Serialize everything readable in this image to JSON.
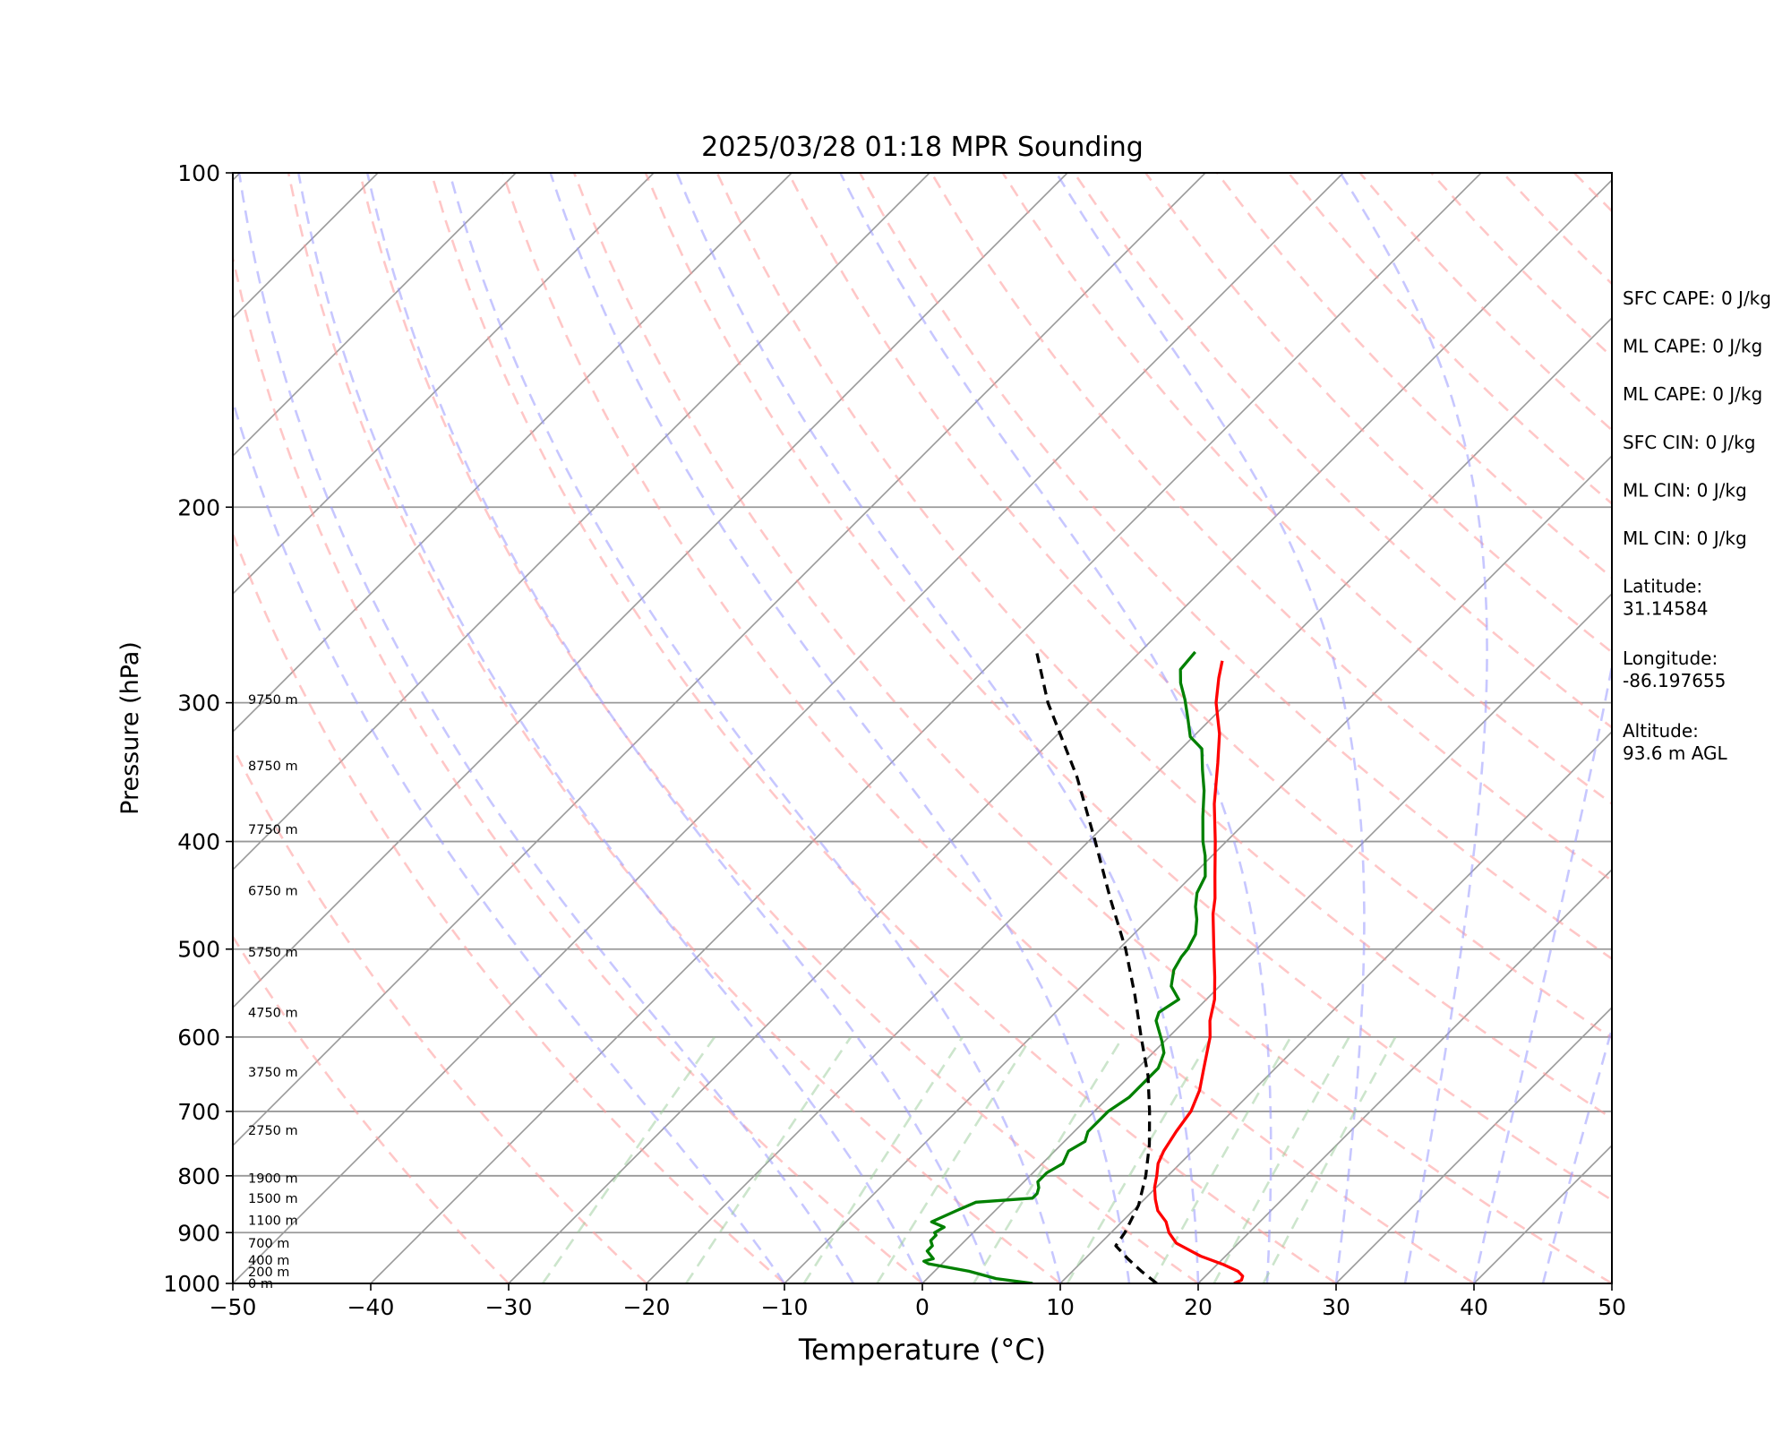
{
  "chart_data": {
    "type": "line",
    "title": "2025/03/28 01:18 MPR Sounding",
    "xlabel": "Temperature (°C)",
    "ylabel": "Pressure (hPa)",
    "xlim": [
      -50,
      50
    ],
    "ylim": [
      1000,
      100
    ],
    "y_scale": "log",
    "skew_degrees": 45,
    "grid": true,
    "x_ticks": [
      "−50",
      "−40",
      "−30",
      "−20",
      "−10",
      "0",
      "10",
      "20",
      "30",
      "40",
      "50"
    ],
    "x_tick_values": [
      -50,
      -40,
      -30,
      -20,
      -10,
      0,
      10,
      20,
      30,
      40,
      50
    ],
    "y_ticks": [
      "1000",
      "900",
      "800",
      "700",
      "600",
      "500",
      "400",
      "300",
      "200",
      "100"
    ],
    "y_tick_values": [
      1000,
      900,
      800,
      700,
      600,
      500,
      400,
      300,
      200,
      100
    ],
    "colors": {
      "temperature": "#ff0000",
      "dewpoint": "#008000",
      "parcel": "#000000",
      "dry_adiabats": "#ff9999",
      "moist_adiabats": "#9999ff",
      "mixing_ratio": "#99cc99",
      "isotherms": "#999999",
      "isobars": "#999999"
    },
    "series": [
      {
        "key": "temperature",
        "style": "solid",
        "points": [
          [
            1000,
            22.6
          ],
          [
            993,
            22.9
          ],
          [
            985,
            22.7
          ],
          [
            975,
            22.0
          ],
          [
            962,
            20.5
          ],
          [
            945,
            18.2
          ],
          [
            920,
            15.5
          ],
          [
            900,
            14.2
          ],
          [
            880,
            13.2
          ],
          [
            860,
            11.8
          ],
          [
            840,
            10.8
          ],
          [
            820,
            9.9
          ],
          [
            800,
            9.2
          ],
          [
            780,
            8.4
          ],
          [
            760,
            7.9
          ],
          [
            730,
            7.4
          ],
          [
            700,
            7.0
          ],
          [
            670,
            6.1
          ],
          [
            640,
            4.8
          ],
          [
            600,
            3.0
          ],
          [
            580,
            1.8
          ],
          [
            555,
            0.6
          ],
          [
            530,
            -1.0
          ],
          [
            500,
            -3.1
          ],
          [
            465,
            -5.7
          ],
          [
            450,
            -6.7
          ],
          [
            430,
            -8.3
          ],
          [
            400,
            -10.8
          ],
          [
            370,
            -13.6
          ],
          [
            340,
            -16.3
          ],
          [
            320,
            -18.3
          ],
          [
            300,
            -20.8
          ],
          [
            285,
            -22.4
          ],
          [
            275,
            -23.4
          ]
        ]
      },
      {
        "key": "dewpoint",
        "style": "solid",
        "points": [
          [
            1000,
            8.0
          ],
          [
            990,
            5.0
          ],
          [
            975,
            2.5
          ],
          [
            960,
            -1.0
          ],
          [
            955,
            -1.5
          ],
          [
            950,
            -1.0
          ],
          [
            935,
            -2.0
          ],
          [
            925,
            -2.0
          ],
          [
            915,
            -2.5
          ],
          [
            905,
            -2.5
          ],
          [
            900,
            -2.8
          ],
          [
            890,
            -2.5
          ],
          [
            880,
            -3.8
          ],
          [
            870,
            -3.3
          ],
          [
            860,
            -2.8
          ],
          [
            845,
            -2.0
          ],
          [
            838,
            1.8
          ],
          [
            830,
            1.8
          ],
          [
            820,
            1.5
          ],
          [
            810,
            1.0
          ],
          [
            795,
            1.0
          ],
          [
            780,
            1.5
          ],
          [
            760,
            1.0
          ],
          [
            745,
            1.5
          ],
          [
            730,
            1.0
          ],
          [
            700,
            1.0
          ],
          [
            680,
            1.5
          ],
          [
            660,
            1.5
          ],
          [
            640,
            1.5
          ],
          [
            620,
            0.8
          ],
          [
            605,
            -0.2
          ],
          [
            580,
            -2.1
          ],
          [
            570,
            -2.5
          ],
          [
            555,
            -2.0
          ],
          [
            540,
            -3.5
          ],
          [
            522,
            -4.5
          ],
          [
            508,
            -4.9
          ],
          [
            500,
            -5.0
          ],
          [
            485,
            -5.5
          ],
          [
            470,
            -6.5
          ],
          [
            458,
            -7.5
          ],
          [
            445,
            -8.4
          ],
          [
            430,
            -9.0
          ],
          [
            412,
            -10.5
          ],
          [
            400,
            -11.7
          ],
          [
            380,
            -13.5
          ],
          [
            360,
            -15.3
          ],
          [
            345,
            -16.9
          ],
          [
            330,
            -18.5
          ],
          [
            322,
            -20.2
          ],
          [
            310,
            -21.7
          ],
          [
            298,
            -23.3
          ],
          [
            288,
            -24.8
          ],
          [
            280,
            -25.8
          ],
          [
            270,
            -26.0
          ]
        ]
      },
      {
        "key": "parcel",
        "style": "dashed",
        "points": [
          [
            1000,
            17.0
          ],
          [
            975,
            15.0
          ],
          [
            950,
            13.1
          ],
          [
            925,
            11.3
          ],
          [
            900,
            11.0
          ],
          [
            850,
            10.0
          ],
          [
            800,
            8.4
          ],
          [
            750,
            6.4
          ],
          [
            700,
            4.0
          ],
          [
            650,
            1.3
          ],
          [
            600,
            -2.0
          ],
          [
            550,
            -5.5
          ],
          [
            500,
            -9.5
          ],
          [
            450,
            -14.3
          ],
          [
            400,
            -19.5
          ],
          [
            350,
            -25.5
          ],
          [
            300,
            -33.0
          ],
          [
            270,
            -37.5
          ]
        ]
      }
    ],
    "height_labels": [
      {
        "p": 1000,
        "text": "0 m"
      },
      {
        "p": 976,
        "text": "200 m"
      },
      {
        "p": 953,
        "text": "400 m"
      },
      {
        "p": 920,
        "text": "700 m"
      },
      {
        "p": 877,
        "text": "1100 m"
      },
      {
        "p": 838,
        "text": "1500 m"
      },
      {
        "p": 804,
        "text": "1900 m"
      },
      {
        "p": 728,
        "text": "2750 m"
      },
      {
        "p": 645,
        "text": "3750 m"
      },
      {
        "p": 570,
        "text": "4750 m"
      },
      {
        "p": 503,
        "text": "5750 m"
      },
      {
        "p": 443,
        "text": "6750 m"
      },
      {
        "p": 390,
        "text": "7750 m"
      },
      {
        "p": 342,
        "text": "8750 m"
      },
      {
        "p": 298,
        "text": "9750 m"
      }
    ],
    "info_panel": [
      "SFC CAPE: 0 J/kg",
      "ML CAPE: 0 J/kg",
      "ML CAPE: 0 J/kg",
      "SFC CIN: 0 J/kg",
      "ML CIN: 0 J/kg",
      "ML CIN: 0 J/kg",
      "Latitude:\n31.14584",
      "Longitude:\n-86.197655",
      "Altitude:\n93.6 m AGL"
    ]
  }
}
